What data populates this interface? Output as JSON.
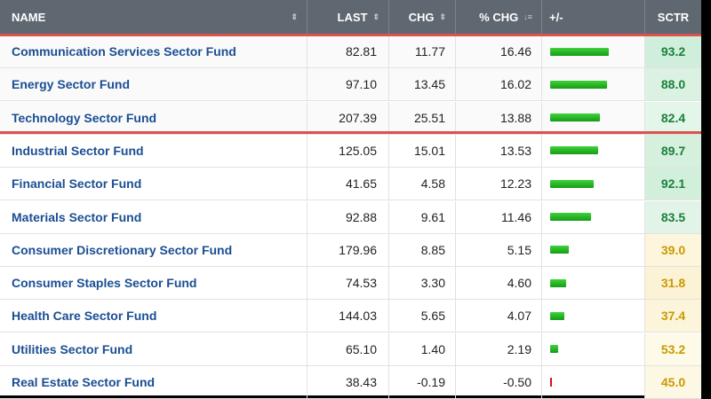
{
  "header": {
    "name": "NAME",
    "last": "LAST",
    "chg": "CHG",
    "pchg": "% CHG",
    "bar": "+/-",
    "sctr": "SCTR",
    "sort_icon": "⇕",
    "sorted_desc_icon": "↓≡"
  },
  "rows": [
    {
      "name": "Communication Services Sector Fund",
      "last": "82.81",
      "chg": "11.77",
      "pchg": "16.46",
      "sctr": "93.2",
      "pchg_num": 16.46,
      "sctr_color": "#18803a",
      "sctr_bg": "#cfeedb"
    },
    {
      "name": "Energy Sector Fund",
      "last": "97.10",
      "chg": "13.45",
      "pchg": "16.02",
      "sctr": "88.0",
      "pchg_num": 16.02,
      "sctr_color": "#18803a",
      "sctr_bg": "#dbf2e2"
    },
    {
      "name": "Technology Sector Fund",
      "last": "207.39",
      "chg": "25.51",
      "pchg": "13.88",
      "sctr": "82.4",
      "pchg_num": 13.88,
      "sctr_color": "#18803a",
      "sctr_bg": "#e4f5e9"
    },
    {
      "name": "Industrial Sector Fund",
      "last": "125.05",
      "chg": "15.01",
      "pchg": "13.53",
      "sctr": "89.7",
      "pchg_num": 13.53,
      "sctr_color": "#18803a",
      "sctr_bg": "#d6f0de"
    },
    {
      "name": "Financial Sector Fund",
      "last": "41.65",
      "chg": "4.58",
      "pchg": "12.23",
      "sctr": "92.1",
      "pchg_num": 12.23,
      "sctr_color": "#18803a",
      "sctr_bg": "#d2efdc"
    },
    {
      "name": "Materials Sector Fund",
      "last": "92.88",
      "chg": "9.61",
      "pchg": "11.46",
      "sctr": "83.5",
      "pchg_num": 11.46,
      "sctr_color": "#18803a",
      "sctr_bg": "#e2f4e7"
    },
    {
      "name": "Consumer Discretionary Sector Fund",
      "last": "179.96",
      "chg": "8.85",
      "pchg": "5.15",
      "sctr": "39.0",
      "pchg_num": 5.15,
      "sctr_color": "#c89a00",
      "sctr_bg": "#fdf6dc"
    },
    {
      "name": "Consumer Staples Sector Fund",
      "last": "74.53",
      "chg": "3.30",
      "pchg": "4.60",
      "sctr": "31.8",
      "pchg_num": 4.6,
      "sctr_color": "#c89a00",
      "sctr_bg": "#fcf2d6"
    },
    {
      "name": "Health Care Sector Fund",
      "last": "144.03",
      "chg": "5.65",
      "pchg": "4.07",
      "sctr": "37.4",
      "pchg_num": 4.07,
      "sctr_color": "#c89a00",
      "sctr_bg": "#fdf5db"
    },
    {
      "name": "Utilities Sector Fund",
      "last": "65.10",
      "chg": "1.40",
      "pchg": "2.19",
      "sctr": "53.2",
      "pchg_num": 2.19,
      "sctr_color": "#c89a00",
      "sctr_bg": "#fefae8"
    },
    {
      "name": "Real Estate Sector Fund",
      "last": "38.43",
      "chg": "-0.19",
      "pchg": "-0.50",
      "sctr": "45.0",
      "pchg_num": -0.5,
      "sctr_color": "#c89a00",
      "sctr_bg": "#fdf8e4"
    }
  ],
  "highlight": {
    "color": "#d9534f",
    "rows": [
      0,
      1,
      2
    ]
  }
}
